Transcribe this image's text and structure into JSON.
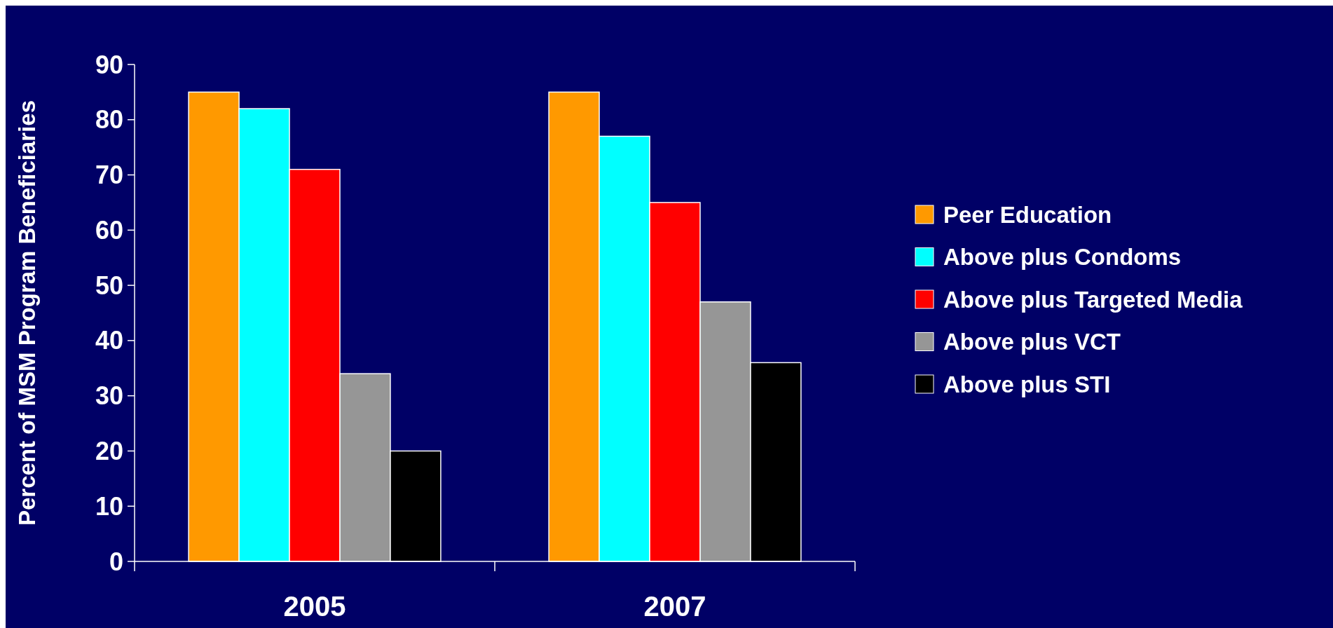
{
  "chart_data": {
    "type": "bar",
    "ylabel": "Percent of MSM Program Beneficiaries",
    "categories": [
      "2005",
      "2007"
    ],
    "series": [
      {
        "name": "Peer Education",
        "color": "#ff9900",
        "values": [
          85,
          85
        ]
      },
      {
        "name": "Above plus Condoms",
        "color": "#00ffff",
        "values": [
          82,
          77
        ]
      },
      {
        "name": "Above plus Targeted Media",
        "color": "#ff0000",
        "values": [
          71,
          65
        ]
      },
      {
        "name": "Above plus VCT",
        "color": "#969696",
        "values": [
          34,
          47
        ]
      },
      {
        "name": "Above plus STI",
        "color": "#000000",
        "values": [
          20,
          36
        ]
      }
    ],
    "ylim": [
      0,
      90
    ],
    "yticks": [
      0,
      10,
      20,
      30,
      40,
      50,
      60,
      70,
      80,
      90
    ],
    "grid": false,
    "legend": "right"
  }
}
